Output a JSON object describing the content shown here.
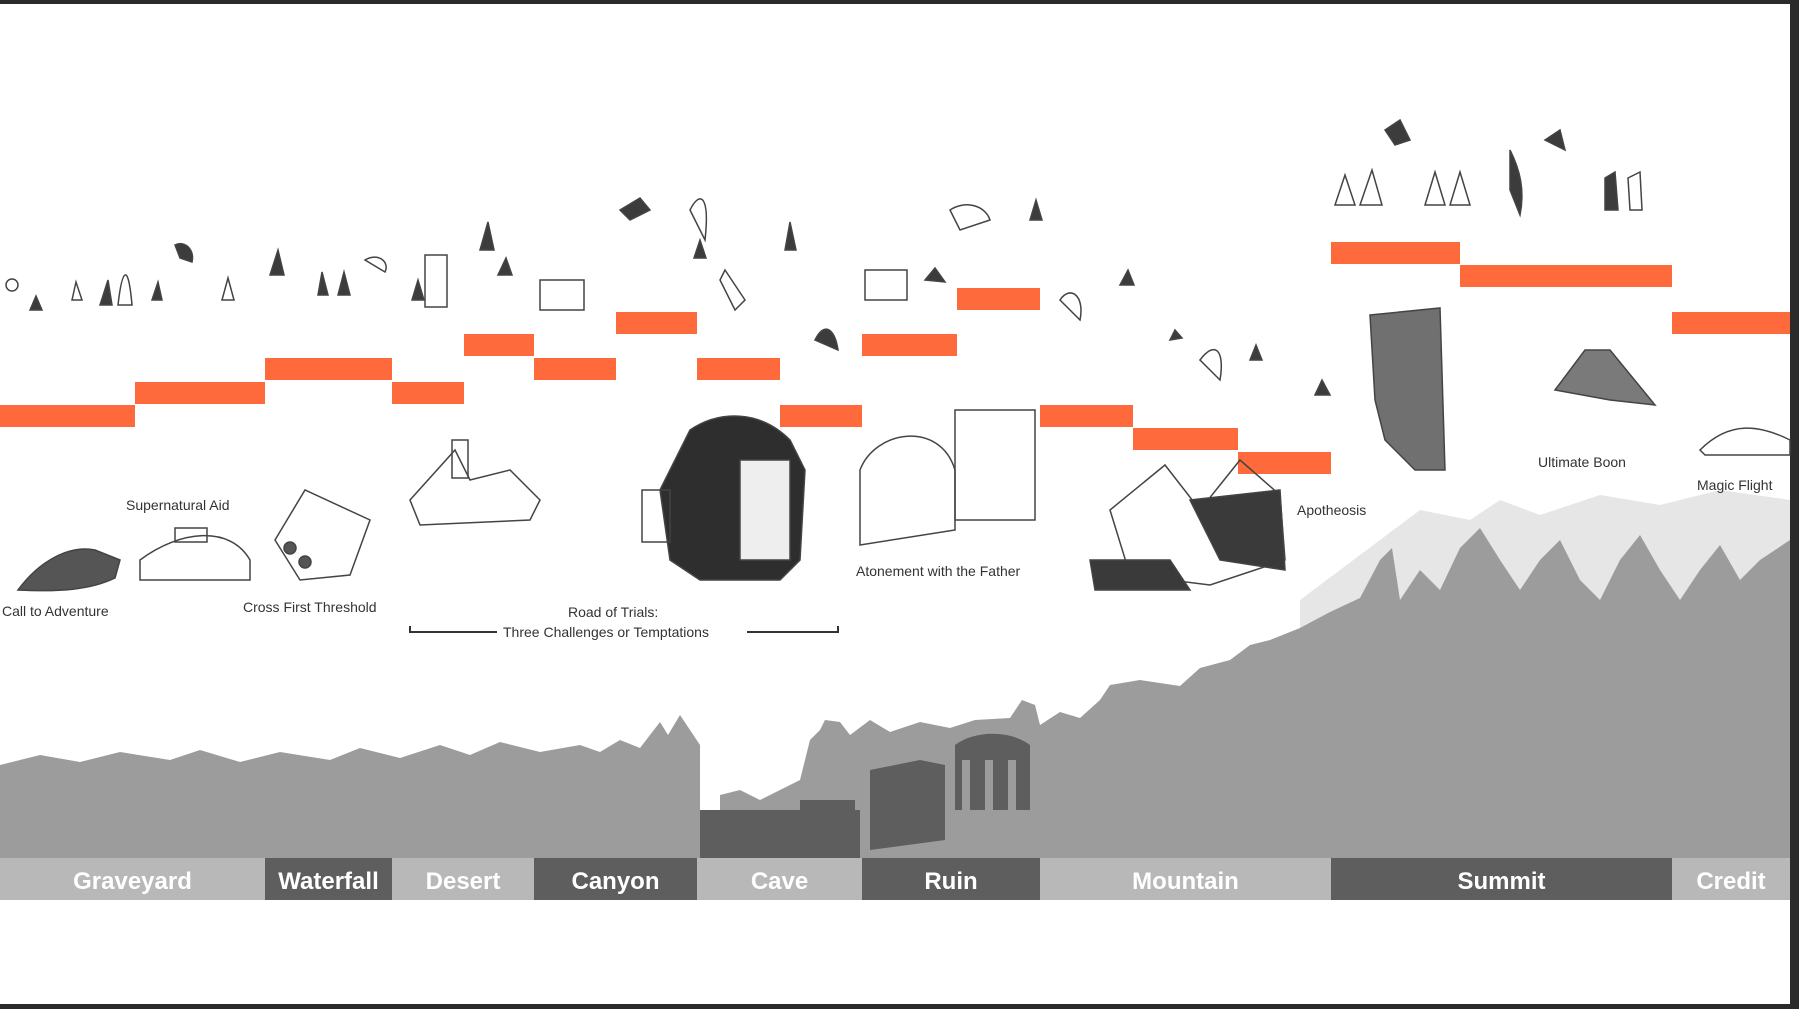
{
  "colors": {
    "accent": "#ff6a3d",
    "silhouette": "#9a9a9a",
    "silhouette_dark": "#5c5c5c",
    "region_light": "#b8b8b8",
    "region_dark": "#5e5e5e",
    "sketch": "#444444"
  },
  "labels": {
    "call_to_adventure": "Call to Adventure",
    "supernatural_aid": "Supernatural Aid",
    "cross_first_threshold": "Cross First Threshold",
    "road_of_trials_1": "Road of Trials:",
    "road_of_trials_2": "Three Challenges or Temptations",
    "atonement": "Atonement with the Father",
    "apotheosis": "Apotheosis",
    "ultimate_boon": "Ultimate Boon",
    "magic_flight": "Magic Flight"
  },
  "regions": [
    {
      "name": "Graveyard",
      "shade": "light"
    },
    {
      "name": "Waterfall",
      "shade": "dark"
    },
    {
      "name": "Desert",
      "shade": "light"
    },
    {
      "name": "Canyon",
      "shade": "dark"
    },
    {
      "name": "Cave",
      "shade": "light"
    },
    {
      "name": "Ruin",
      "shade": "dark"
    },
    {
      "name": "Mountain",
      "shade": "light"
    },
    {
      "name": "Summit",
      "shade": "dark"
    },
    {
      "name": "Credit",
      "shade": "light"
    }
  ]
}
